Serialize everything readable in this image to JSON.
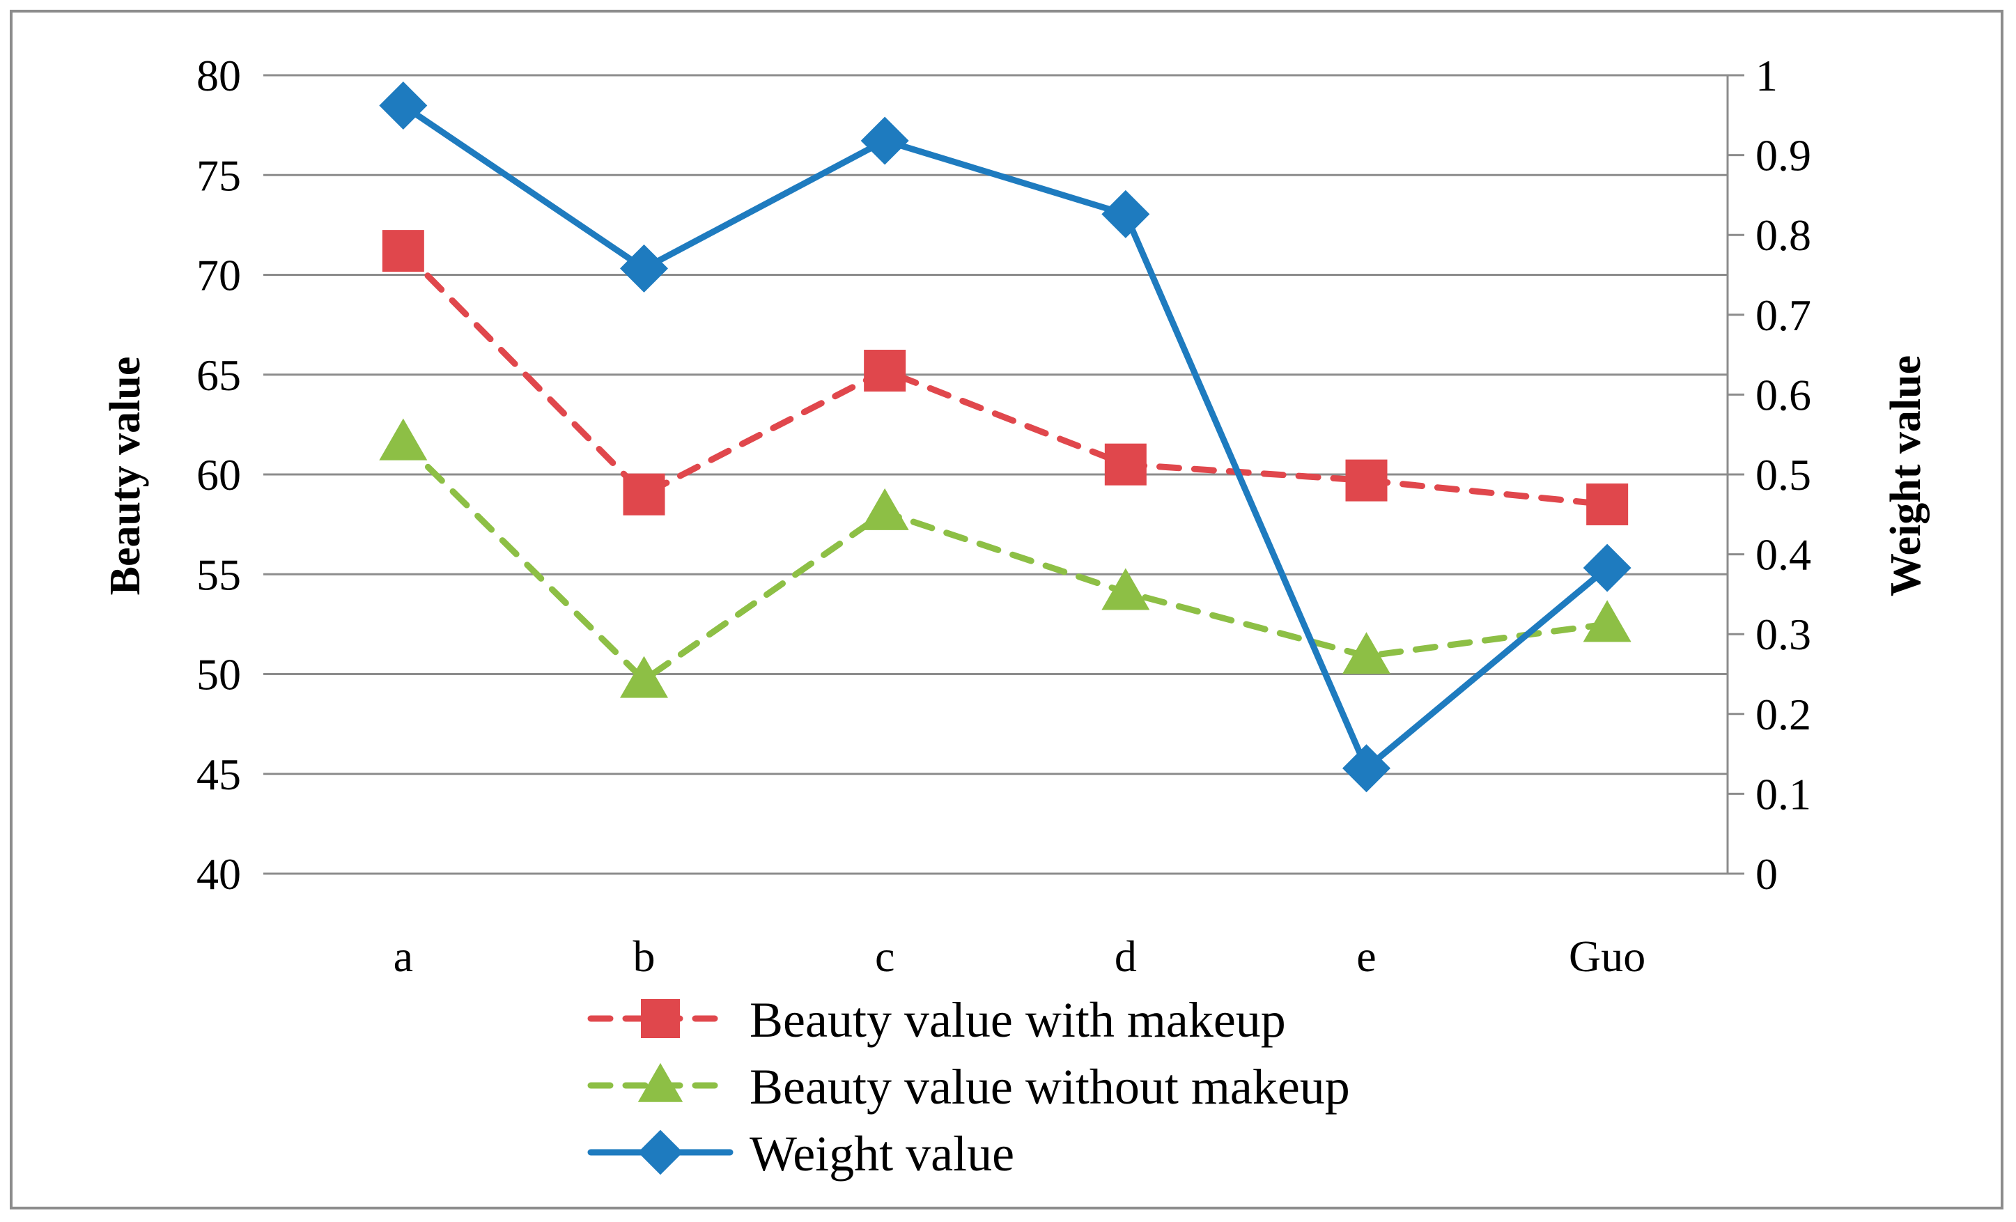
{
  "chart_data": {
    "type": "line",
    "categories": [
      "a",
      "b",
      "c",
      "d",
      "e",
      "Guo"
    ],
    "series": [
      {
        "name": "Beauty value with makeup",
        "axis": "left",
        "values": [
          71.2,
          59.0,
          65.2,
          60.5,
          59.7,
          58.5
        ],
        "color": "#e0474c",
        "line_style": "dashed",
        "marker": "square"
      },
      {
        "name": "Beauty value without makeup",
        "axis": "left",
        "values": [
          61.6,
          49.7,
          58.1,
          54.1,
          50.9,
          52.5
        ],
        "color": "#8dbf45",
        "line_style": "dashed",
        "marker": "triangle"
      },
      {
        "name": "Weight value",
        "axis": "right",
        "values": [
          0.962,
          0.758,
          0.918,
          0.826,
          0.132,
          0.383
        ],
        "color": "#1e7bbf",
        "line_style": "solid",
        "marker": "diamond"
      }
    ],
    "y_left": {
      "label": "Beauty value",
      "min": 40,
      "max": 80,
      "ticks": [
        "40",
        "45",
        "50",
        "55",
        "60",
        "65",
        "70",
        "75",
        "80"
      ]
    },
    "y_right": {
      "label": "Weight value",
      "min": 0,
      "max": 1,
      "ticks": [
        "0",
        "0.1",
        "0.2",
        "0.3",
        "0.4",
        "0.5",
        "0.6",
        "0.7",
        "0.8",
        "0.9",
        "1"
      ]
    },
    "grid": true,
    "legend_position": "bottom"
  }
}
